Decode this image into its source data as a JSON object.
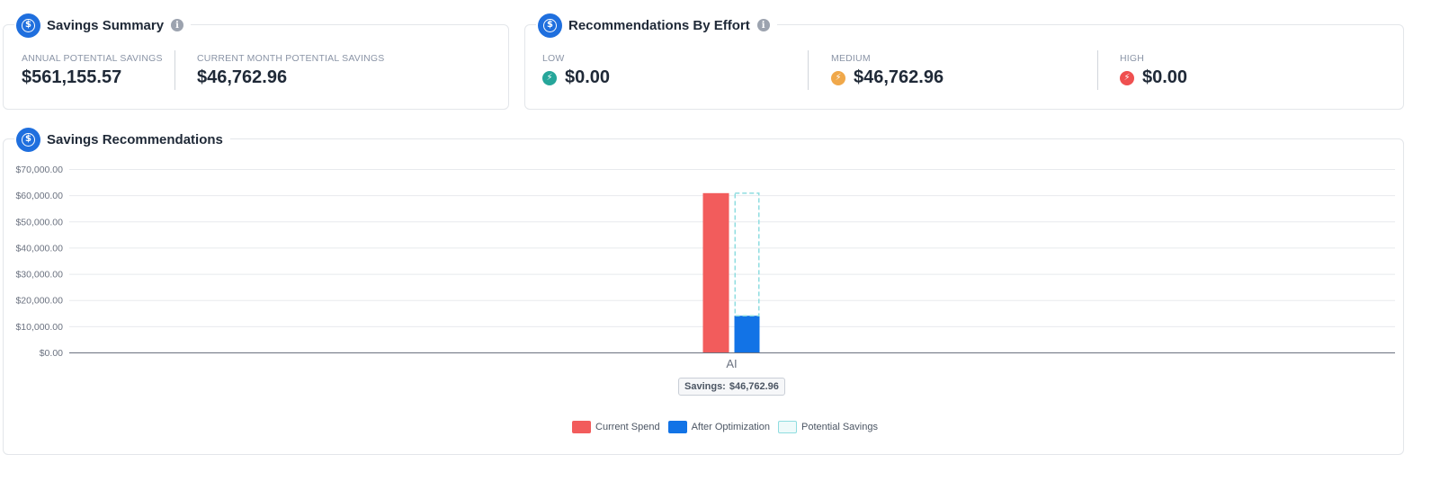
{
  "savings_summary": {
    "title": "Savings Summary",
    "annual_label": "ANNUAL POTENTIAL SAVINGS",
    "annual_value": "$561,155.57",
    "month_label": "CURRENT MONTH POTENTIAL SAVINGS",
    "month_value": "$46,762.96"
  },
  "effort": {
    "title": "Recommendations By Effort",
    "items": [
      {
        "label": "LOW",
        "value": "$0.00",
        "color": "#26a69a",
        "glyph": "⚡"
      },
      {
        "label": "MEDIUM",
        "value": "$46,762.96",
        "color": "#f0a84a",
        "glyph": "⚡"
      },
      {
        "label": "HIGH",
        "value": "$0.00",
        "color": "#ef5050",
        "glyph": "⚡"
      }
    ]
  },
  "recommendations": {
    "title": "Savings Recommendations",
    "tooltip_label": "Savings:",
    "tooltip_value": "$46,762.96"
  },
  "colors": {
    "brand": "#1f6fde",
    "current_spend": "#f25c5c",
    "after_optimization": "#1273e6",
    "potential_savings": "#8fdde0"
  },
  "chart_data": {
    "type": "bar",
    "categories": [
      "AI"
    ],
    "series": [
      {
        "name": "Current Spend",
        "values": [
          60800
        ],
        "color": "#f25c5c"
      },
      {
        "name": "After Optimization",
        "values": [
          14000
        ],
        "color": "#1273e6"
      },
      {
        "name": "Potential Savings",
        "values": [
          46762.96
        ],
        "color": "#8fdde0",
        "stacked_on": "After Optimization",
        "style": "dashed-outline"
      }
    ],
    "yticks": [
      "$0.00",
      "$10,000.00",
      "$20,000.00",
      "$30,000.00",
      "$40,000.00",
      "$50,000.00",
      "$60,000.00",
      "$70,000.00"
    ],
    "ylim": [
      0,
      70000
    ],
    "grid": true,
    "legend": "bottom-center",
    "legend_entries": [
      "Current Spend",
      "After Optimization",
      "Potential Savings"
    ]
  }
}
